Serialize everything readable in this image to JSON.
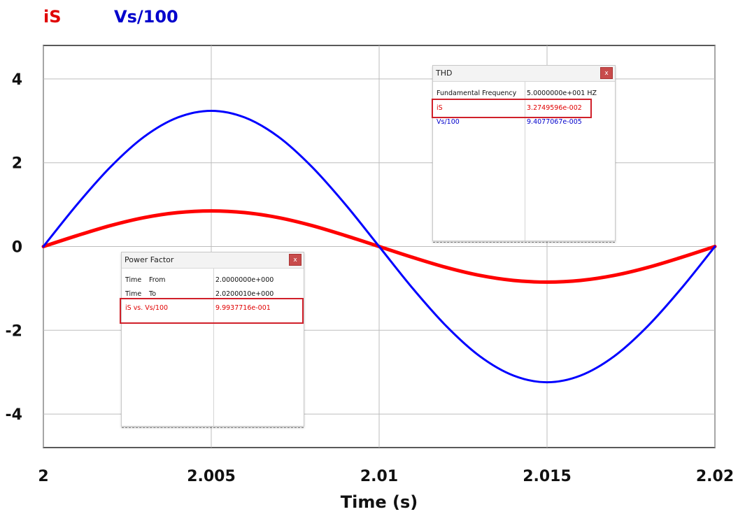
{
  "chart_data": {
    "type": "line",
    "title": "",
    "xlabel": "Time (s)",
    "ylabel": "",
    "xlim": [
      2.0,
      2.02
    ],
    "ylim": [
      -4.8,
      4.8
    ],
    "x_ticks": [
      "2",
      "2.005",
      "2.01",
      "2.015",
      "2.02"
    ],
    "y_ticks": [
      "4",
      "2",
      "0",
      "-2",
      "-4"
    ],
    "grid": true,
    "legend_position": "top-left",
    "series": [
      {
        "name": "iS",
        "color": "#ff0000",
        "x": [
          2.0,
          2.001,
          2.002,
          2.003,
          2.004,
          2.005,
          2.006,
          2.007,
          2.008,
          2.009,
          2.01,
          2.011,
          2.012,
          2.013,
          2.014,
          2.015,
          2.016,
          2.017,
          2.018,
          2.019,
          2.02
        ],
        "y": [
          0.0,
          0.26,
          0.5,
          0.69,
          0.81,
          0.85,
          0.81,
          0.69,
          0.5,
          0.26,
          0.0,
          -0.26,
          -0.5,
          -0.69,
          -0.81,
          -0.85,
          -0.81,
          -0.69,
          -0.5,
          -0.26,
          0.0
        ]
      },
      {
        "name": "Vs/100",
        "color": "#0000ff",
        "x": [
          2.0,
          2.001,
          2.002,
          2.003,
          2.004,
          2.005,
          2.006,
          2.007,
          2.008,
          2.009,
          2.01,
          2.011,
          2.012,
          2.013,
          2.014,
          2.015,
          2.016,
          2.017,
          2.018,
          2.019,
          2.02
        ],
        "y": [
          0.0,
          1.0,
          1.9,
          2.62,
          3.08,
          3.24,
          3.08,
          2.62,
          1.9,
          1.0,
          0.0,
          -1.0,
          -1.9,
          -2.62,
          -3.08,
          -3.24,
          -3.08,
          -2.62,
          -1.9,
          -1.0,
          0.0
        ]
      }
    ]
  },
  "legend": {
    "is_label": "iS",
    "vs_label": "Vs/100"
  },
  "thd": {
    "title": "THD",
    "close": "x",
    "rows": [
      {
        "label": "Fundamental Frequency",
        "value": "5.0000000e+001 HZ"
      },
      {
        "label": "iS",
        "value": "3.2749596e-002"
      },
      {
        "label": "Vs/100",
        "value": "9.4077067e-005"
      }
    ]
  },
  "pf": {
    "title": "Power Factor",
    "close": "x",
    "rows": [
      {
        "label1": "Time",
        "label2": "From",
        "value": "2.0000000e+000"
      },
      {
        "label1": "Time",
        "label2": "To",
        "value": "2.0200010e+000"
      },
      {
        "label1": "iS vs. Vs/100",
        "label2": "",
        "value": "9.9937716e-001"
      }
    ]
  }
}
